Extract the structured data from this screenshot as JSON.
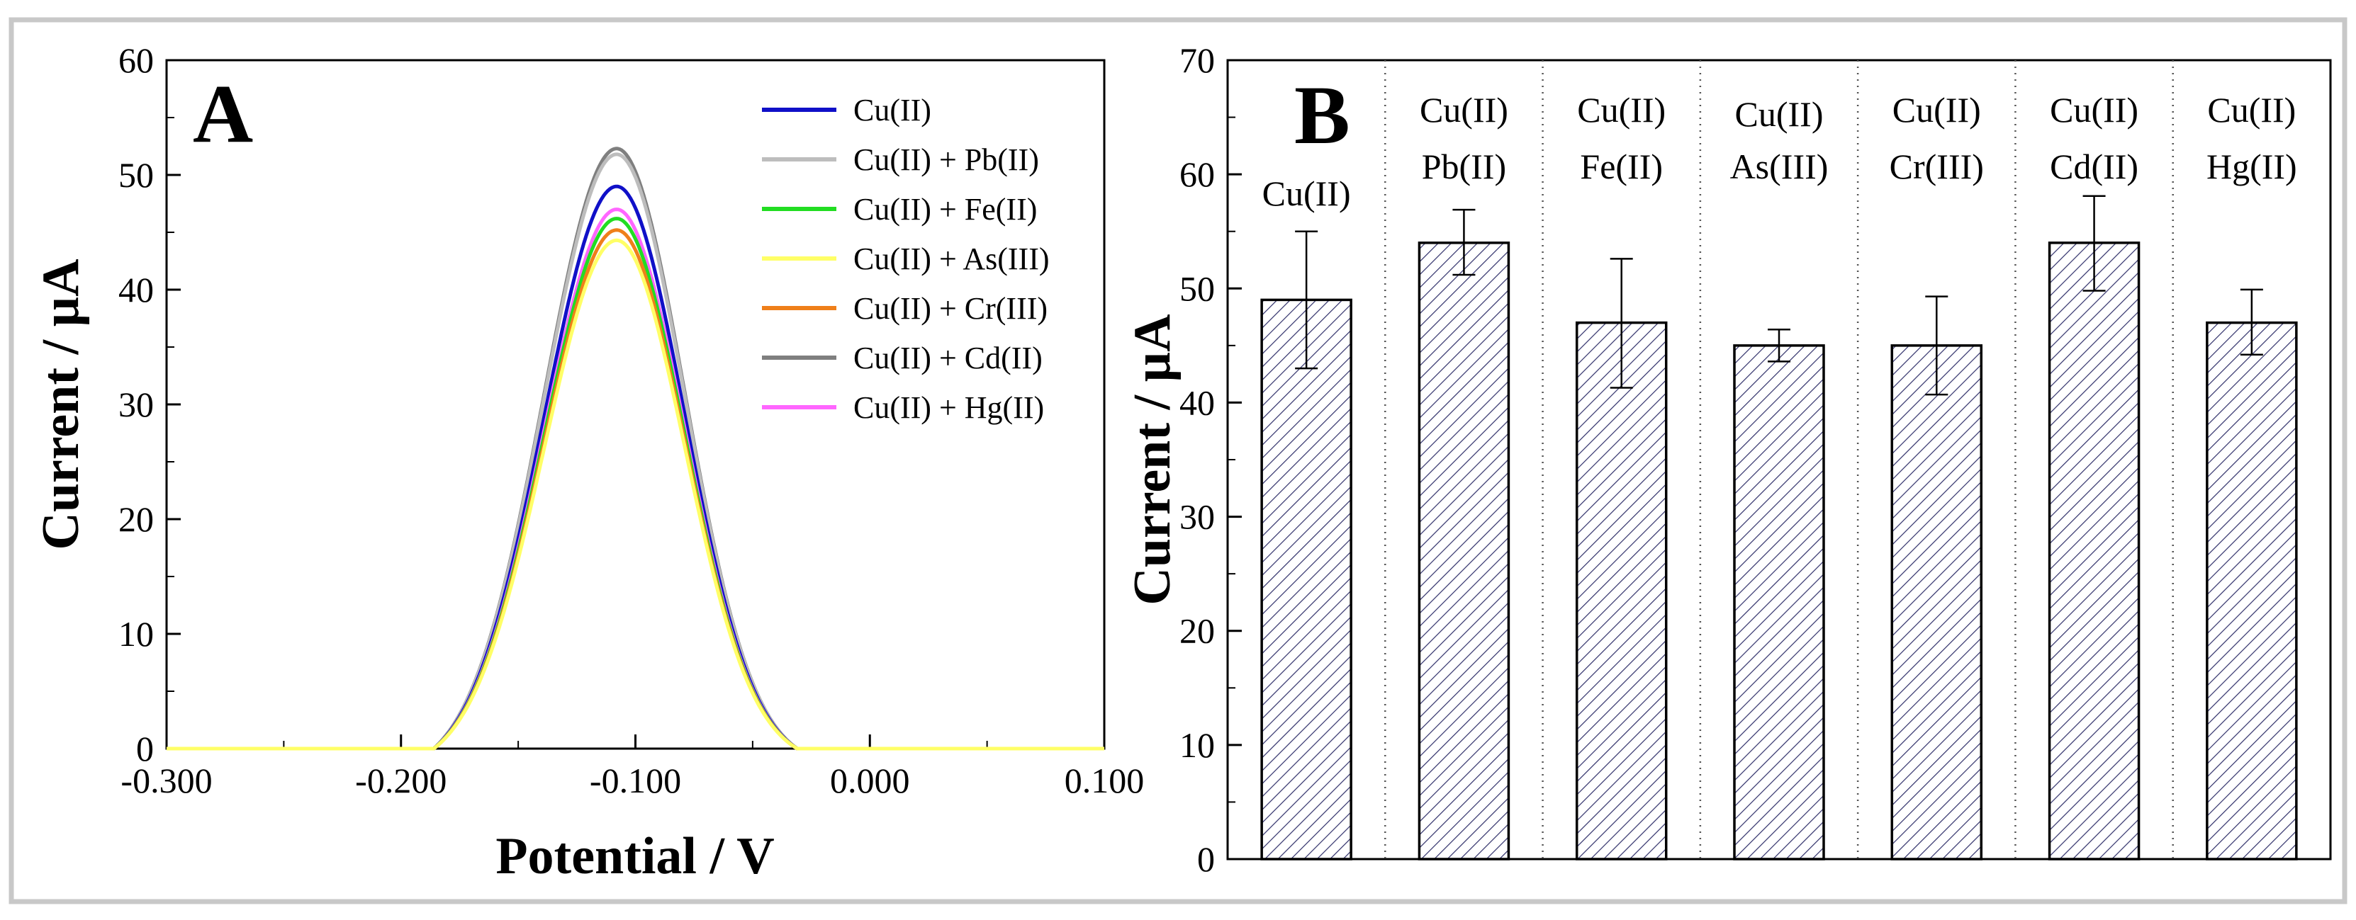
{
  "chart_data": [
    {
      "type": "line",
      "panel": "A",
      "xlabel": "Potential / V",
      "ylabel": "Current / µA",
      "xlim": [
        -0.3,
        0.1
      ],
      "ylim": [
        0,
        60
      ],
      "xticks": [
        -0.3,
        -0.2,
        -0.1,
        0.0,
        0.1
      ],
      "xtick_labels": [
        "-0.300",
        "-0.200",
        "-0.100",
        "0.000",
        "0.100"
      ],
      "yticks": [
        0,
        10,
        20,
        30,
        40,
        50,
        60
      ],
      "ytick_labels": [
        "0",
        "10",
        "20",
        "30",
        "40",
        "50",
        "60"
      ],
      "peak_shape": {
        "onset": -0.186,
        "peak_x": -0.108,
        "end": -0.031,
        "width_left": 0.031,
        "width_right": 0.029
      },
      "legend_position": "top-right",
      "series": [
        {
          "name": "Cu(II) + Cd(II)",
          "color": "#7f7f7f",
          "peak": 52.3
        },
        {
          "name": "Cu(II) + Pb(II)",
          "color": "#bdbdbd",
          "peak": 51.8
        },
        {
          "name": "Cu(II)",
          "color": "#1010c8",
          "peak": 49.0
        },
        {
          "name": "Cu(II) + Hg(II)",
          "color": "#ff66ff",
          "peak": 47.0
        },
        {
          "name": "Cu(II) + Fe(II)",
          "color": "#22dd22",
          "peak": 46.2
        },
        {
          "name": "Cu(II) + Cr(III)",
          "color": "#ef7f1a",
          "peak": 45.2
        },
        {
          "name": "Cu(II) + As(III)",
          "color": "#ffff66",
          "peak": 44.3
        }
      ],
      "legend": [
        {
          "name": "Cu(II)",
          "color": "#1010c8"
        },
        {
          "name": "Cu(II) + Pb(II)",
          "color": "#bdbdbd"
        },
        {
          "name": "Cu(II) + Fe(II)",
          "color": "#22dd22"
        },
        {
          "name": "Cu(II) + As(III)",
          "color": "#ffff66"
        },
        {
          "name": "Cu(II) + Cr(III)",
          "color": "#ef7f1a"
        },
        {
          "name": "Cu(II) + Cd(II)",
          "color": "#7f7f7f"
        },
        {
          "name": "Cu(II) + Hg(II)",
          "color": "#ff66ff"
        }
      ]
    },
    {
      "type": "bar",
      "panel": "B",
      "ylabel": "Current / µA",
      "ylim": [
        0,
        70
      ],
      "yticks": [
        0,
        10,
        20,
        30,
        40,
        50,
        60,
        70
      ],
      "ytick_labels": [
        "0",
        "10",
        "20",
        "30",
        "40",
        "50",
        "60",
        "70"
      ],
      "bar_fill": "hatched",
      "hatch_color": "#30306a",
      "categories": [
        [
          "Cu(II)"
        ],
        [
          "Cu(II)",
          "Pb(II)"
        ],
        [
          "Cu(II)",
          "Fe(II)"
        ],
        [
          "Cu(II)",
          "As(III)"
        ],
        [
          "Cu(II)",
          "Cr(III)"
        ],
        [
          "Cu(II)",
          "Cd(II)"
        ],
        [
          "Cu(II)",
          "Hg(II)"
        ]
      ],
      "values": [
        49,
        54,
        47,
        45,
        45,
        54,
        47
      ],
      "error_low": [
        43,
        51.2,
        41.3,
        43.6,
        40.7,
        49.8,
        44.2
      ],
      "error_high": [
        55,
        56.9,
        52.6,
        46.4,
        49.3,
        58.1,
        49.9
      ]
    }
  ]
}
